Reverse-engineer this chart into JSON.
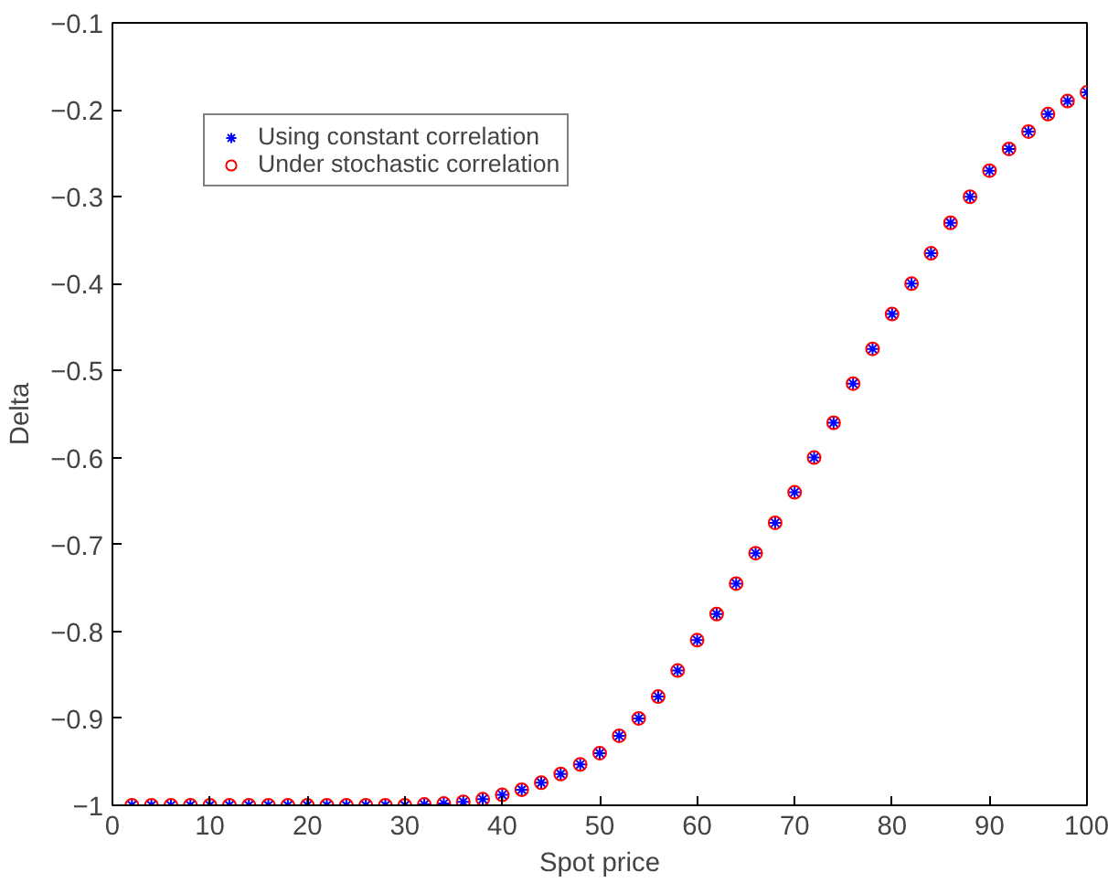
{
  "chart_data": {
    "type": "scatter",
    "xlabel": "Spot price",
    "ylabel": "Delta",
    "xlim": [
      0,
      100
    ],
    "ylim": [
      -1,
      -0.1
    ],
    "xticks": [
      0,
      10,
      20,
      30,
      40,
      50,
      60,
      70,
      80,
      90,
      100
    ],
    "yticks": [
      -1,
      -0.9,
      -0.8,
      -0.7,
      -0.6,
      -0.5,
      -0.4,
      -0.3,
      -0.2,
      -0.1
    ],
    "grid": false,
    "legend": "top left",
    "x": [
      2,
      4,
      6,
      8,
      10,
      12,
      14,
      16,
      18,
      20,
      22,
      24,
      26,
      28,
      30,
      32,
      34,
      36,
      38,
      40,
      42,
      44,
      46,
      48,
      50,
      52,
      54,
      56,
      58,
      60,
      62,
      64,
      66,
      68,
      70,
      72,
      74,
      76,
      78,
      80,
      82,
      84,
      86,
      88,
      90,
      92,
      94,
      96,
      98,
      100
    ],
    "series": [
      {
        "name": "Using constant correlation",
        "color": "#0000ff",
        "marker": "cross",
        "values": [
          -1,
          -1,
          -1,
          -1,
          -1,
          -1,
          -1,
          -1,
          -1,
          -1,
          -1,
          -1,
          -1,
          -1,
          -1,
          -0.999,
          -0.998,
          -0.996,
          -0.993,
          -0.988,
          -0.982,
          -0.974,
          -0.964,
          -0.953,
          -0.94,
          -0.92,
          -0.9,
          -0.875,
          -0.845,
          -0.81,
          -0.78,
          -0.745,
          -0.71,
          -0.675,
          -0.64,
          -0.6,
          -0.56,
          -0.515,
          -0.475,
          -0.435,
          -0.4,
          -0.365,
          -0.33,
          -0.3,
          -0.27,
          -0.245,
          -0.225,
          -0.205,
          -0.19,
          -0.18
        ]
      },
      {
        "name": "Under stochastic correlation",
        "color": "#ff0000",
        "marker": "circle",
        "values": [
          -1,
          -1,
          -1,
          -1,
          -1,
          -1,
          -1,
          -1,
          -1,
          -1,
          -1,
          -1,
          -1,
          -1,
          -1,
          -0.999,
          -0.998,
          -0.996,
          -0.993,
          -0.988,
          -0.982,
          -0.974,
          -0.964,
          -0.953,
          -0.94,
          -0.92,
          -0.9,
          -0.875,
          -0.845,
          -0.81,
          -0.78,
          -0.745,
          -0.71,
          -0.675,
          -0.64,
          -0.6,
          -0.56,
          -0.515,
          -0.475,
          -0.435,
          -0.4,
          -0.365,
          -0.33,
          -0.3,
          -0.27,
          -0.245,
          -0.225,
          -0.205,
          -0.19,
          -0.18
        ]
      }
    ]
  }
}
